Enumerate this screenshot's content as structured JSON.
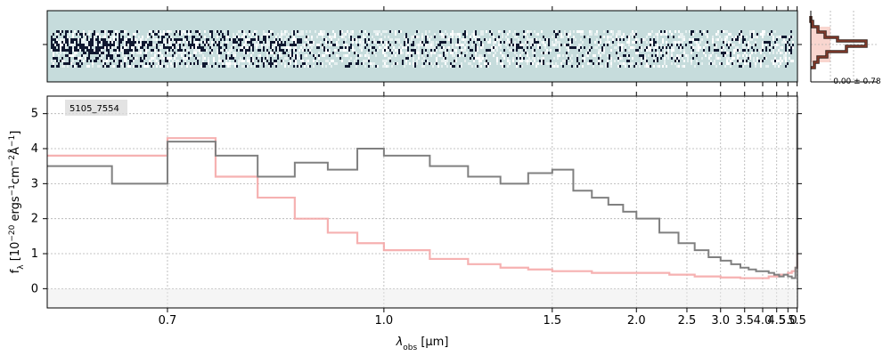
{
  "chart_data": [
    {
      "type": "heatmap",
      "panel": "2d-spectrum",
      "background_color": "#c6dcdc",
      "trace_color": "#101830"
    },
    {
      "type": "line",
      "panel": "1d-spectrum",
      "annotation": "5105_7554",
      "xlabel": "λobs [μm]",
      "xlabel_main": "λ",
      "xlabel_sub": "obs",
      "xlabel_unit": " [μm]",
      "ylabel": "fλ [10−20 ergs−1cm−2Å−1]",
      "ylabel_main": "f",
      "ylabel_sub": "λ",
      "ylabel_pre": " [10",
      "ylabel_exp1": "−20",
      "ylabel_mid1": " ergs",
      "ylabel_exp2": "−1",
      "ylabel_mid2": "cm",
      "ylabel_exp3": "−2",
      "ylabel_mid3": "Å",
      "ylabel_exp4": "−1",
      "ylabel_post": "]",
      "x_scale": "reciprocal",
      "xlim": [
        0.6,
        5.52
      ],
      "ylim": [
        -0.55,
        5.5
      ],
      "x_ticks": [
        0.7,
        1.0,
        1.5,
        2.0,
        2.5,
        3.0,
        3.5,
        4.0,
        4.5,
        5.0,
        5.5
      ],
      "x_tick_labels": [
        "0.7",
        "1.0",
        "1.5",
        "2.0",
        "2.5",
        "3.0",
        "3.5",
        "4.0",
        "4.5",
        "5.0",
        "5.5"
      ],
      "y_ticks": [
        0,
        1,
        2,
        3,
        4,
        5
      ],
      "y_tick_labels": [
        "0",
        "1",
        "2",
        "3",
        "4",
        "5"
      ],
      "grid": true,
      "series": [
        {
          "role": "flux",
          "color": "#808080",
          "x": [
            0.6,
            0.65,
            0.7,
            0.75,
            0.8,
            0.85,
            0.9,
            0.95,
            1.0,
            1.1,
            1.2,
            1.3,
            1.4,
            1.5,
            1.6,
            1.7,
            1.8,
            1.9,
            2.0,
            2.2,
            2.4,
            2.6,
            2.8,
            3.0,
            3.2,
            3.4,
            3.6,
            3.8,
            4.0,
            4.2,
            4.4,
            4.6,
            4.8,
            5.0,
            5.2,
            5.4,
            5.5
          ],
          "y": [
            3.5,
            3.0,
            4.2,
            3.8,
            3.2,
            3.6,
            3.4,
            4.0,
            3.8,
            3.5,
            3.2,
            3.0,
            3.3,
            3.4,
            2.8,
            2.6,
            2.4,
            2.2,
            2.0,
            1.6,
            1.3,
            1.1,
            0.9,
            0.8,
            0.7,
            0.6,
            0.55,
            0.5,
            0.5,
            0.45,
            0.4,
            0.35,
            0.4,
            0.35,
            0.3,
            0.6,
            5.0
          ]
        },
        {
          "role": "model",
          "color": "#f4a3a3",
          "x": [
            0.6,
            0.7,
            0.75,
            0.8,
            0.85,
            0.9,
            0.95,
            1.0,
            1.1,
            1.2,
            1.3,
            1.4,
            1.5,
            1.7,
            2.0,
            2.3,
            2.6,
            3.0,
            3.4,
            3.8,
            4.2,
            4.6,
            5.0,
            5.2,
            5.4,
            5.5
          ],
          "y": [
            3.8,
            4.3,
            3.2,
            2.6,
            2.0,
            1.6,
            1.3,
            1.1,
            0.85,
            0.7,
            0.6,
            0.55,
            0.5,
            0.45,
            0.45,
            0.4,
            0.35,
            0.32,
            0.3,
            0.3,
            0.35,
            0.4,
            0.45,
            0.5,
            0.6,
            1.0
          ]
        }
      ]
    },
    {
      "type": "histogram",
      "panel": "residual-histogram",
      "annotation": "-0.00 ± 0.78",
      "hist_color": "#8b3a2a",
      "shade_color": "#f9d6cf"
    }
  ]
}
